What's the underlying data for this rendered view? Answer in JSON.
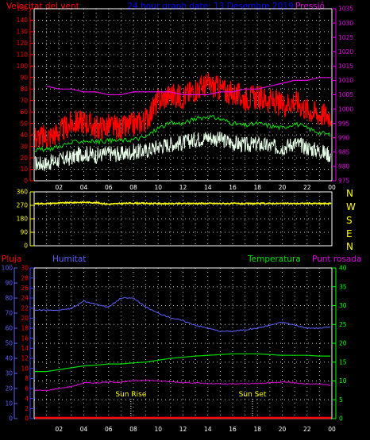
{
  "header": {
    "wind_label": "Velocitat del vent",
    "center_title": "24 hour graph date: 13 Desembre 2019",
    "pressure_label": "Pressió"
  },
  "labels": {
    "pluja": "Pluja",
    "humitat": "Humitat",
    "temperatura": "Temperatura",
    "punt_rosada": "Punt rosada",
    "sun_rise": "Sun Rise",
    "sun_set": "Sun Set"
  },
  "compass": [
    "N",
    "W",
    "S",
    "E",
    "N"
  ],
  "colors": {
    "wind": "#ff0000",
    "wind_avg": "#00e000",
    "wind_low": "#e8ffe8",
    "pressure": "#e000e0",
    "direction": "#ffff00",
    "humidity": "#6060ff",
    "temperature": "#00e000",
    "dewpoint": "#e000e0",
    "rain": "#ff0000",
    "rain_axis": "#4040ff",
    "humidity_axis": "#6060ff",
    "temp_axis": "#00ff00",
    "dew_axis": "#e000e0",
    "grid": "#ffffff"
  },
  "chart_data": [
    {
      "type": "line",
      "title": "24 hour graph date: 13 Desembre 2019",
      "x_hours": [
        1,
        2,
        3,
        4,
        5,
        6,
        7,
        8,
        9,
        10,
        11,
        12,
        13,
        14,
        15,
        16,
        17,
        18,
        19,
        20,
        21,
        22,
        23,
        24
      ],
      "x_tick_labels": [
        "02",
        "04",
        "06",
        "08",
        "10",
        "12",
        "14",
        "16",
        "18",
        "20",
        "22",
        "00"
      ],
      "y_left_ticks": [
        "0",
        "10",
        "20",
        "30",
        "40",
        "50",
        "60",
        "70",
        "80",
        "90",
        "100",
        "110",
        "120",
        "130",
        "140",
        "150"
      ],
      "y_left_range": [
        0,
        150
      ],
      "y_right_ticks": [
        "975",
        "980",
        "985",
        "990",
        "995",
        "1000",
        "1005",
        "1010",
        "1015",
        "1020",
        "1025",
        "1030",
        "1035"
      ],
      "y_right_range": [
        975,
        1035
      ],
      "series": [
        {
          "name": "Velocitat del vent",
          "axis": "left",
          "values": [
            38,
            42,
            50,
            52,
            46,
            48,
            45,
            49,
            53,
            70,
            75,
            73,
            80,
            84,
            80,
            76,
            72,
            73,
            70,
            66,
            70,
            62,
            58,
            57
          ]
        },
        {
          "axis": "left",
          "values": [
            27,
            30,
            33,
            35,
            34,
            35,
            35,
            36,
            38,
            46,
            50,
            50,
            54,
            56,
            54,
            50,
            48,
            50,
            48,
            46,
            50,
            46,
            42,
            40
          ]
        },
        {
          "axis": "left",
          "values": [
            15,
            18,
            20,
            24,
            22,
            24,
            23,
            25,
            26,
            30,
            32,
            33,
            36,
            38,
            36,
            33,
            31,
            32,
            30,
            29,
            33,
            29,
            26,
            22
          ]
        },
        {
          "name": "Pressió",
          "axis": "right",
          "values": [
            1008,
            1007,
            1007,
            1006,
            1006,
            1005,
            1005,
            1006,
            1006,
            1006,
            1006,
            1005,
            1005,
            1005,
            1006,
            1006,
            1007,
            1007,
            1008,
            1009,
            1010,
            1010,
            1011,
            1011
          ]
        }
      ]
    },
    {
      "type": "line",
      "x_hours": [
        1,
        2,
        3,
        4,
        5,
        6,
        7,
        8,
        9,
        10,
        11,
        12,
        13,
        14,
        15,
        16,
        17,
        18,
        19,
        20,
        21,
        22,
        23,
        24
      ],
      "y_ticks": [
        "0",
        "90",
        "180",
        "270",
        "360"
      ],
      "y_range": [
        0,
        360
      ],
      "series": [
        {
          "values": [
            282,
            285,
            288,
            290,
            288,
            278,
            282,
            285,
            283,
            282,
            281,
            282,
            283,
            283,
            282,
            282,
            281,
            282,
            283,
            282,
            282,
            283,
            282,
            282
          ]
        }
      ]
    },
    {
      "type": "line",
      "x_hours": [
        1,
        2,
        3,
        4,
        5,
        6,
        7,
        8,
        9,
        10,
        11,
        12,
        13,
        14,
        15,
        16,
        17,
        18,
        19,
        20,
        21,
        22,
        23,
        24
      ],
      "y_rain_ticks": [
        "0",
        "2",
        "4",
        "6",
        "8",
        "10",
        "12",
        "14",
        "16",
        "18",
        "20",
        "22",
        "24",
        "26",
        "28",
        "30"
      ],
      "y_rain_range": [
        0,
        30
      ],
      "y_humidity_ticks": [
        "0",
        "10",
        "20",
        "30",
        "40",
        "50",
        "60",
        "70",
        "80",
        "90",
        "100"
      ],
      "y_humidity_range": [
        0,
        100
      ],
      "y_temp_ticks": [
        "0",
        "5",
        "10",
        "15",
        "20",
        "25",
        "30",
        "35",
        "40"
      ],
      "y_temp_range": [
        0,
        40
      ],
      "sun_rise_hour": 7.8,
      "sun_set_hour": 17.6,
      "series": [
        {
          "name": "Humitat",
          "axis": "humidity",
          "values": [
            72,
            72,
            73,
            78,
            76,
            74,
            80,
            80,
            74,
            70,
            67,
            65,
            62,
            60,
            58,
            58,
            59,
            60,
            62,
            64,
            62,
            60,
            60,
            61
          ]
        },
        {
          "name": "Temperatura",
          "axis": "temperature",
          "values": [
            12.5,
            13.0,
            13.5,
            14.0,
            14.2,
            14.5,
            14.5,
            14.8,
            15.0,
            15.5,
            16.0,
            16.3,
            16.6,
            16.8,
            17.0,
            17.2,
            17.2,
            17.2,
            17.0,
            16.8,
            16.8,
            16.8,
            16.6,
            16.6
          ]
        },
        {
          "name": "Punt rosada",
          "axis": "temperature",
          "values": [
            7.5,
            8.0,
            8.5,
            9.5,
            9.5,
            9.7,
            9.7,
            10.0,
            10.2,
            10.0,
            9.8,
            9.6,
            9.5,
            9.3,
            9.2,
            9.2,
            9.3,
            9.3,
            9.5,
            9.8,
            9.5,
            9.2,
            9.2,
            8.8
          ]
        },
        {
          "name": "Pluja",
          "axis": "rain",
          "values": [
            0,
            0,
            0,
            0,
            0,
            0,
            0,
            0,
            0,
            0,
            0,
            0,
            0,
            0,
            0,
            0,
            0,
            0,
            0,
            0,
            0,
            0,
            0,
            0
          ]
        }
      ]
    }
  ]
}
